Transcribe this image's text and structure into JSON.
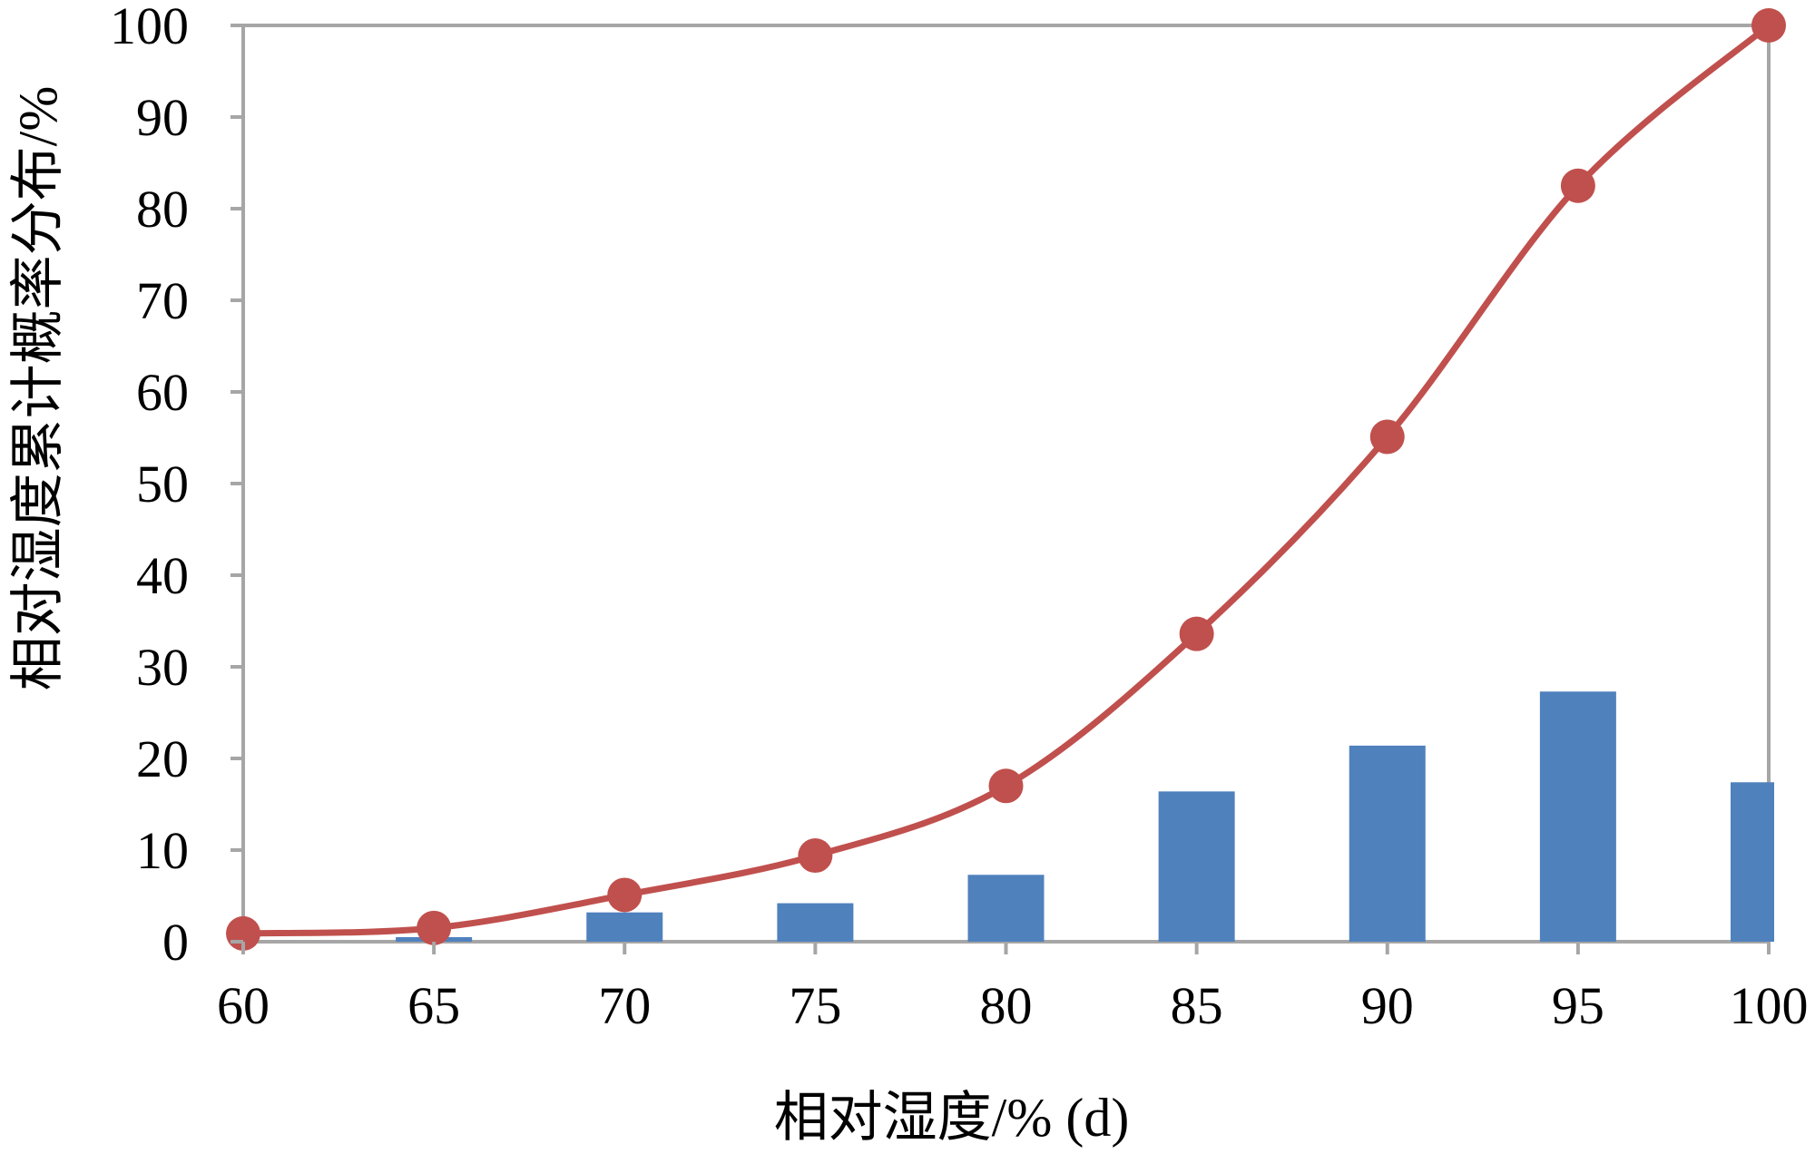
{
  "chart_data": {
    "type": "bar",
    "xlabel": "相对湿度/% (d)",
    "ylabel": "相对湿度累计概率分布/%",
    "xlim": [
      60,
      100
    ],
    "ylim": [
      0,
      100
    ],
    "x_ticks": [
      "60",
      "65",
      "70",
      "75",
      "80",
      "85",
      "90",
      "95",
      "100"
    ],
    "y_ticks": [
      "0",
      "10",
      "20",
      "30",
      "40",
      "50",
      "60",
      "70",
      "80",
      "90",
      "100"
    ],
    "grid": false,
    "legend": "none",
    "series": [
      {
        "kind": "bar",
        "color": "#4F81BD",
        "x": [
          65,
          70,
          75,
          80,
          85,
          90,
          95,
          100
        ],
        "values": [
          0.5,
          3.2,
          4.2,
          7.3,
          16.4,
          21.4,
          27.3,
          17.4
        ]
      },
      {
        "kind": "line",
        "marker": "circle",
        "smooth": true,
        "color": "#C0504D",
        "x": [
          60,
          65,
          70,
          75,
          80,
          85,
          90,
          95,
          100
        ],
        "values": [
          0.9,
          1.5,
          5.1,
          9.4,
          17.0,
          33.6,
          55.1,
          82.5,
          100
        ]
      }
    ]
  }
}
